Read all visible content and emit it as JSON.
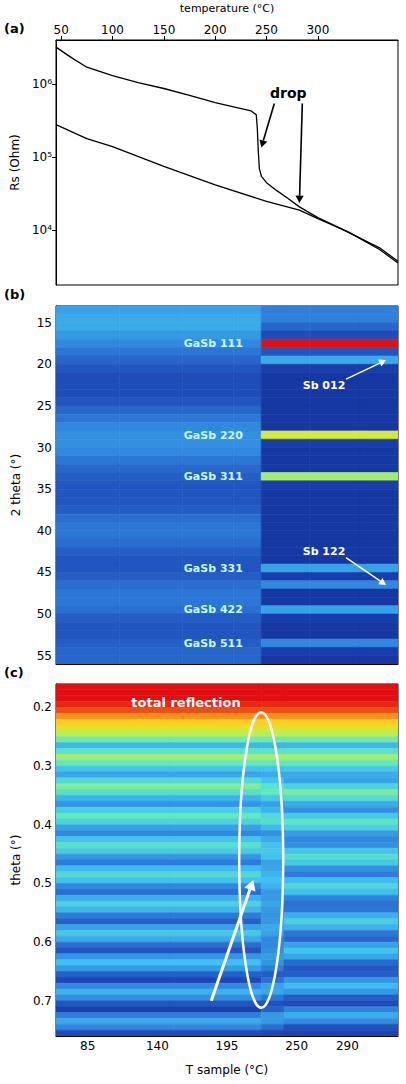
{
  "chart_data": [
    {
      "type": "line",
      "panel": "(a)",
      "x_label": "temperature (°C)",
      "y_label": "Rs (Ohm)",
      "log": "y",
      "xlim": [
        45,
        378
      ],
      "xticks": [
        50,
        100,
        150,
        200,
        250,
        300
      ],
      "ylim": [
        1800,
        4000000
      ],
      "yticks": [
        {
          "value": 10000,
          "label": "10⁴"
        },
        {
          "value": 100000,
          "label": "10⁵"
        },
        {
          "value": 1000000,
          "label": "10⁶"
        }
      ],
      "series": [
        {
          "color": "#000000",
          "x": [
            45,
            60,
            75,
            100,
            125,
            150,
            175,
            200,
            220,
            235,
            240,
            241,
            242,
            243,
            245,
            250,
            260,
            270,
            282,
            300,
            320,
            340,
            360,
            378
          ],
          "values": [
            3200000,
            2300000,
            1700000,
            1300000,
            1050000,
            870000,
            700000,
            560000,
            480000,
            430000,
            380000,
            250000,
            120000,
            70000,
            55000,
            45000,
            35000,
            28000,
            21000,
            15000,
            11000,
            8000,
            5800,
            3800
          ]
        },
        {
          "color": "#000000",
          "x": [
            45,
            75,
            100,
            150,
            200,
            250,
            282,
            300,
            330,
            360,
            378
          ],
          "values": [
            280000,
            180000,
            140000,
            75000,
            42000,
            25000,
            19000,
            14500,
            9500,
            5500,
            3600
          ]
        }
      ],
      "annotations": [
        {
          "text": "drop",
          "points": [
            [
              242,
              120000
            ],
            [
              282,
              21000
            ]
          ]
        }
      ]
    },
    {
      "type": "heatmap",
      "panel": "(b)",
      "y_label": "2 theta (°)",
      "tick_labels": "y",
      "xlim": [
        60,
        330
      ],
      "ylim": [
        13,
        56
      ],
      "yticks": [
        15,
        20,
        25,
        30,
        35,
        40,
        45,
        50,
        55
      ],
      "zlim": [
        0,
        100
      ],
      "x_edges": [
        60,
        110,
        160,
        200,
        222,
        260,
        300,
        330
      ],
      "y_edges": [
        13,
        14,
        15,
        16,
        17,
        18,
        19,
        20,
        21,
        22,
        23,
        24,
        25,
        26,
        27,
        28,
        29,
        30,
        31,
        32,
        33,
        34,
        35,
        36,
        37,
        38,
        39,
        40,
        41,
        42,
        43,
        44,
        45,
        46,
        47,
        48,
        49,
        50,
        51,
        52,
        53,
        54,
        55,
        56
      ],
      "values": [
        [
          38,
          38,
          38,
          38,
          30,
          30,
          30
        ],
        [
          40,
          40,
          40,
          40,
          30,
          30,
          30
        ],
        [
          40,
          40,
          40,
          40,
          24,
          24,
          24
        ],
        [
          36,
          36,
          36,
          36,
          18,
          18,
          18
        ],
        [
          32,
          32,
          32,
          32,
          100,
          100,
          100
        ],
        [
          28,
          28,
          28,
          28,
          20,
          20,
          20
        ],
        [
          24,
          24,
          24,
          24,
          40,
          40,
          40
        ],
        [
          20,
          20,
          20,
          20,
          14,
          14,
          14
        ],
        [
          18,
          18,
          18,
          18,
          12,
          12,
          12
        ],
        [
          18,
          18,
          18,
          18,
          12,
          12,
          12
        ],
        [
          18,
          18,
          18,
          18,
          12,
          12,
          12
        ],
        [
          20,
          20,
          20,
          20,
          12,
          12,
          12
        ],
        [
          24,
          24,
          24,
          24,
          12,
          12,
          12
        ],
        [
          28,
          28,
          28,
          28,
          12,
          12,
          12
        ],
        [
          32,
          32,
          32,
          32,
          12,
          12,
          12
        ],
        [
          34,
          34,
          34,
          34,
          75,
          75,
          75
        ],
        [
          34,
          34,
          34,
          34,
          14,
          14,
          14
        ],
        [
          32,
          32,
          32,
          32,
          12,
          12,
          12
        ],
        [
          28,
          28,
          28,
          28,
          12,
          12,
          12
        ],
        [
          24,
          24,
          24,
          24,
          12,
          12,
          12
        ],
        [
          22,
          22,
          22,
          22,
          68,
          68,
          68
        ],
        [
          20,
          20,
          20,
          20,
          14,
          14,
          14
        ],
        [
          20,
          20,
          20,
          20,
          12,
          12,
          12
        ],
        [
          20,
          20,
          20,
          20,
          12,
          12,
          12
        ],
        [
          22,
          22,
          22,
          22,
          12,
          12,
          12
        ],
        [
          26,
          26,
          26,
          26,
          12,
          12,
          12
        ],
        [
          28,
          28,
          28,
          28,
          12,
          12,
          12
        ],
        [
          28,
          28,
          28,
          28,
          12,
          12,
          12
        ],
        [
          26,
          26,
          26,
          26,
          12,
          12,
          12
        ],
        [
          22,
          22,
          22,
          22,
          12,
          12,
          12
        ],
        [
          20,
          20,
          20,
          20,
          12,
          12,
          12
        ],
        [
          20,
          20,
          20,
          20,
          38,
          38,
          38
        ],
        [
          22,
          22,
          22,
          22,
          14,
          14,
          14
        ],
        [
          26,
          26,
          26,
          26,
          32,
          32,
          32
        ],
        [
          28,
          28,
          28,
          28,
          12,
          12,
          12
        ],
        [
          28,
          28,
          28,
          28,
          12,
          12,
          12
        ],
        [
          26,
          26,
          26,
          26,
          38,
          38,
          38
        ],
        [
          22,
          22,
          22,
          22,
          14,
          14,
          14
        ],
        [
          20,
          20,
          20,
          20,
          12,
          12,
          12
        ],
        [
          20,
          20,
          20,
          20,
          12,
          12,
          12
        ],
        [
          22,
          22,
          22,
          22,
          32,
          32,
          32
        ],
        [
          24,
          24,
          24,
          24,
          14,
          14,
          14
        ],
        [
          24,
          24,
          24,
          24,
          12,
          12,
          12
        ]
      ],
      "peak_labels": [
        {
          "text": "GaSb 111",
          "y": 17.5
        },
        {
          "text": "GaSb 220",
          "y": 28.5
        },
        {
          "text": "GaSb 311",
          "y": 33.5
        },
        {
          "text": "GaSb 331",
          "y": 44.5
        },
        {
          "text": "GaSb 422",
          "y": 49.5
        },
        {
          "text": "GaSb 511",
          "y": 53.5
        }
      ],
      "arrow_labels": [
        {
          "text": "Sb 012",
          "y": 19.5
        },
        {
          "text": "Sb 122",
          "y": 46.5
        }
      ]
    },
    {
      "type": "heatmap",
      "panel": "(c)",
      "x_label": "T sample (°C)",
      "y_label": "theta (°)",
      "xlim": [
        60,
        330
      ],
      "xticks": [
        85,
        140,
        195,
        250,
        290
      ],
      "ylim": [
        0.16,
        0.76
      ],
      "yticks": [
        0.2,
        0.3,
        0.4,
        0.5,
        0.6,
        0.7
      ],
      "zlim": [
        0,
        100
      ],
      "x_edges": [
        60,
        150,
        222,
        240,
        330
      ],
      "y_edges": [
        0.16,
        0.17,
        0.18,
        0.19,
        0.2,
        0.21,
        0.22,
        0.23,
        0.24,
        0.25,
        0.26,
        0.27,
        0.28,
        0.29,
        0.3,
        0.31,
        0.32,
        0.33,
        0.34,
        0.35,
        0.36,
        0.37,
        0.38,
        0.39,
        0.4,
        0.41,
        0.42,
        0.43,
        0.44,
        0.45,
        0.46,
        0.47,
        0.48,
        0.49,
        0.5,
        0.51,
        0.52,
        0.53,
        0.54,
        0.55,
        0.56,
        0.57,
        0.58,
        0.59,
        0.6,
        0.61,
        0.62,
        0.63,
        0.64,
        0.65,
        0.66,
        0.67,
        0.68,
        0.69,
        0.7,
        0.71,
        0.72,
        0.73,
        0.74,
        0.75,
        0.76
      ],
      "values": [
        [
          100,
          100,
          100,
          100
        ],
        [
          100,
          100,
          100,
          100
        ],
        [
          100,
          100,
          100,
          100
        ],
        [
          98,
          98,
          98,
          98
        ],
        [
          95,
          95,
          95,
          95
        ],
        [
          90,
          90,
          90,
          90
        ],
        [
          85,
          85,
          85,
          85
        ],
        [
          78,
          78,
          78,
          78
        ],
        [
          70,
          70,
          70,
          70
        ],
        [
          62,
          62,
          62,
          62
        ],
        [
          43,
          43,
          43,
          43
        ],
        [
          58,
          58,
          58,
          58
        ],
        [
          68,
          68,
          68,
          68
        ],
        [
          60,
          60,
          60,
          60
        ],
        [
          46,
          46,
          47,
          48
        ],
        [
          39,
          39,
          40,
          40
        ],
        [
          54,
          54,
          46,
          38
        ],
        [
          64,
          64,
          58,
          52
        ],
        [
          56,
          56,
          60,
          63
        ],
        [
          42,
          42,
          48,
          55
        ],
        [
          35,
          35,
          38,
          40
        ],
        [
          50,
          50,
          42,
          34
        ],
        [
          60,
          60,
          54,
          48
        ],
        [
          52,
          52,
          56,
          59
        ],
        [
          38,
          38,
          44,
          51
        ],
        [
          32,
          32,
          34,
          37
        ],
        [
          47,
          47,
          40,
          32
        ],
        [
          57,
          57,
          46,
          34
        ],
        [
          49,
          49,
          48,
          47
        ],
        [
          35,
          35,
          46,
          56
        ],
        [
          29,
          29,
          38,
          48
        ],
        [
          44,
          44,
          39,
          34
        ],
        [
          54,
          54,
          42,
          29
        ],
        [
          46,
          46,
          45,
          44
        ],
        [
          32,
          32,
          42,
          53
        ],
        [
          26,
          26,
          36,
          45
        ],
        [
          41,
          41,
          36,
          31
        ],
        [
          51,
          51,
          39,
          27
        ],
        [
          43,
          43,
          36,
          28
        ],
        [
          29,
          29,
          35,
          41
        ],
        [
          23,
          23,
          36,
          50
        ],
        [
          38,
          38,
          40,
          42
        ],
        [
          48,
          48,
          38,
          28
        ],
        [
          40,
          40,
          32,
          24
        ],
        [
          26,
          26,
          32,
          38
        ],
        [
          20,
          20,
          34,
          47
        ],
        [
          35,
          35,
          37,
          39
        ],
        [
          45,
          45,
          35,
          25
        ],
        [
          37,
          37,
          29,
          21
        ],
        [
          23,
          23,
          22,
          22
        ],
        [
          17,
          17,
          26,
          35
        ],
        [
          32,
          32,
          38,
          44
        ],
        [
          42,
          42,
          39,
          36
        ],
        [
          34,
          34,
          28,
          22
        ],
        [
          20,
          20,
          19,
          18
        ],
        [
          15,
          15,
          23,
          31
        ],
        [
          30,
          30,
          36,
          41
        ],
        [
          40,
          40,
          36,
          33
        ],
        [
          32,
          32,
          26,
          19
        ],
        [
          18,
          18,
          17,
          16
        ]
      ],
      "annotations": [
        {
          "text": "total reflection"
        }
      ]
    }
  ]
}
